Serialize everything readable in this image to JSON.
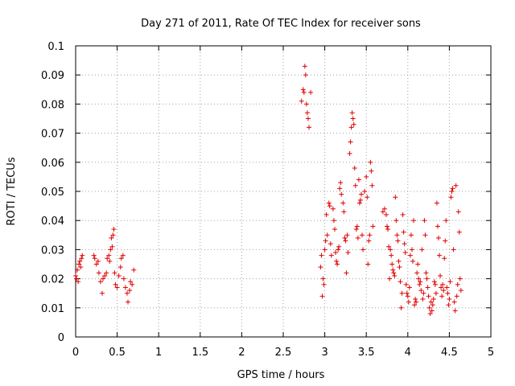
{
  "chart_data": {
    "type": "scatter",
    "title": "Day 271 of 2011, Rate Of TEC Index for receiver sons",
    "xlabel": "GPS time / hours",
    "ylabel": "ROTI / TECUs",
    "xlim": [
      0,
      5
    ],
    "ylim": [
      0,
      0.1
    ],
    "xticks": [
      "0",
      "0.5",
      "1",
      "1.5",
      "2",
      "2.5",
      "3",
      "3.5",
      "4",
      "4.5",
      "5"
    ],
    "yticks": [
      "0",
      "0.01",
      "0.02",
      "0.03",
      "0.04",
      "0.05",
      "0.06",
      "0.07",
      "0.08",
      "0.09",
      "0.1"
    ],
    "grid": true,
    "marker": "+",
    "marker_color": "#e00000",
    "series": [
      {
        "name": "sons",
        "points": [
          [
            0.0,
            0.021
          ],
          [
            0.01,
            0.02
          ],
          [
            0.02,
            0.023
          ],
          [
            0.03,
            0.019
          ],
          [
            0.04,
            0.025
          ],
          [
            0.05,
            0.026
          ],
          [
            0.06,
            0.024
          ],
          [
            0.07,
            0.027
          ],
          [
            0.08,
            0.028
          ],
          [
            0.22,
            0.028
          ],
          [
            0.23,
            0.027
          ],
          [
            0.25,
            0.025
          ],
          [
            0.27,
            0.026
          ],
          [
            0.28,
            0.022
          ],
          [
            0.3,
            0.019
          ],
          [
            0.32,
            0.015
          ],
          [
            0.33,
            0.02
          ],
          [
            0.35,
            0.021
          ],
          [
            0.37,
            0.022
          ],
          [
            0.38,
            0.027
          ],
          [
            0.4,
            0.028
          ],
          [
            0.41,
            0.026
          ],
          [
            0.42,
            0.03
          ],
          [
            0.43,
            0.034
          ],
          [
            0.44,
            0.031
          ],
          [
            0.45,
            0.035
          ],
          [
            0.46,
            0.037
          ],
          [
            0.47,
            0.022
          ],
          [
            0.48,
            0.018
          ],
          [
            0.5,
            0.017
          ],
          [
            0.52,
            0.021
          ],
          [
            0.54,
            0.024
          ],
          [
            0.55,
            0.027
          ],
          [
            0.57,
            0.028
          ],
          [
            0.58,
            0.02
          ],
          [
            0.6,
            0.017
          ],
          [
            0.62,
            0.015
          ],
          [
            0.63,
            0.012
          ],
          [
            0.65,
            0.016
          ],
          [
            0.66,
            0.019
          ],
          [
            0.68,
            0.018
          ],
          [
            0.7,
            0.023
          ],
          [
            2.72,
            0.081
          ],
          [
            2.74,
            0.085
          ],
          [
            2.75,
            0.084
          ],
          [
            2.76,
            0.093
          ],
          [
            2.77,
            0.09
          ],
          [
            2.78,
            0.08
          ],
          [
            2.79,
            0.077
          ],
          [
            2.8,
            0.075
          ],
          [
            2.81,
            0.072
          ],
          [
            2.83,
            0.084
          ],
          [
            2.95,
            0.024
          ],
          [
            2.96,
            0.028
          ],
          [
            2.97,
            0.014
          ],
          [
            2.98,
            0.02
          ],
          [
            2.99,
            0.018
          ],
          [
            3.0,
            0.03
          ],
          [
            3.01,
            0.033
          ],
          [
            3.02,
            0.042
          ],
          [
            3.03,
            0.035
          ],
          [
            3.05,
            0.046
          ],
          [
            3.06,
            0.045
          ],
          [
            3.07,
            0.032
          ],
          [
            3.08,
            0.028
          ],
          [
            3.1,
            0.044
          ],
          [
            3.11,
            0.04
          ],
          [
            3.12,
            0.037
          ],
          [
            3.13,
            0.029
          ],
          [
            3.14,
            0.026
          ],
          [
            3.15,
            0.025
          ],
          [
            3.16,
            0.03
          ],
          [
            3.17,
            0.031
          ],
          [
            3.18,
            0.051
          ],
          [
            3.19,
            0.053
          ],
          [
            3.2,
            0.049
          ],
          [
            3.22,
            0.046
          ],
          [
            3.23,
            0.043
          ],
          [
            3.24,
            0.034
          ],
          [
            3.25,
            0.033
          ],
          [
            3.26,
            0.022
          ],
          [
            3.27,
            0.035
          ],
          [
            3.28,
            0.029
          ],
          [
            3.3,
            0.063
          ],
          [
            3.31,
            0.067
          ],
          [
            3.32,
            0.072
          ],
          [
            3.33,
            0.077
          ],
          [
            3.34,
            0.075
          ],
          [
            3.35,
            0.073
          ],
          [
            3.36,
            0.058
          ],
          [
            3.37,
            0.052
          ],
          [
            3.38,
            0.037
          ],
          [
            3.39,
            0.038
          ],
          [
            3.4,
            0.034
          ],
          [
            3.41,
            0.054
          ],
          [
            3.42,
            0.046
          ],
          [
            3.43,
            0.047
          ],
          [
            3.44,
            0.049
          ],
          [
            3.45,
            0.035
          ],
          [
            3.46,
            0.03
          ],
          [
            3.48,
            0.05
          ],
          [
            3.5,
            0.055
          ],
          [
            3.51,
            0.048
          ],
          [
            3.52,
            0.025
          ],
          [
            3.53,
            0.033
          ],
          [
            3.54,
            0.035
          ],
          [
            3.55,
            0.06
          ],
          [
            3.56,
            0.057
          ],
          [
            3.57,
            0.052
          ],
          [
            3.58,
            0.038
          ],
          [
            3.7,
            0.043
          ],
          [
            3.72,
            0.044
          ],
          [
            3.74,
            0.042
          ],
          [
            3.75,
            0.038
          ],
          [
            3.76,
            0.037
          ],
          [
            3.77,
            0.031
          ],
          [
            3.78,
            0.02
          ],
          [
            3.79,
            0.03
          ],
          [
            3.8,
            0.028
          ],
          [
            3.81,
            0.025
          ],
          [
            3.82,
            0.023
          ],
          [
            3.83,
            0.022
          ],
          [
            3.84,
            0.021
          ],
          [
            3.85,
            0.048
          ],
          [
            3.86,
            0.04
          ],
          [
            3.87,
            0.035
          ],
          [
            3.88,
            0.033
          ],
          [
            3.89,
            0.026
          ],
          [
            3.9,
            0.024
          ],
          [
            3.91,
            0.019
          ],
          [
            3.92,
            0.01
          ],
          [
            3.93,
            0.015
          ],
          [
            3.94,
            0.042
          ],
          [
            3.95,
            0.036
          ],
          [
            3.96,
            0.032
          ],
          [
            3.97,
            0.029
          ],
          [
            3.98,
            0.018
          ],
          [
            3.99,
            0.015
          ],
          [
            4.0,
            0.014
          ],
          [
            4.01,
            0.012
          ],
          [
            4.02,
            0.017
          ],
          [
            4.03,
            0.028
          ],
          [
            4.04,
            0.035
          ],
          [
            4.05,
            0.03
          ],
          [
            4.06,
            0.026
          ],
          [
            4.07,
            0.04
          ],
          [
            4.08,
            0.011
          ],
          [
            4.09,
            0.013
          ],
          [
            4.1,
            0.012
          ],
          [
            4.11,
            0.022
          ],
          [
            4.12,
            0.025
          ],
          [
            4.13,
            0.02
          ],
          [
            4.14,
            0.018
          ],
          [
            4.15,
            0.019
          ],
          [
            4.16,
            0.016
          ],
          [
            4.17,
            0.03
          ],
          [
            4.18,
            0.013
          ],
          [
            4.19,
            0.015
          ],
          [
            4.2,
            0.04
          ],
          [
            4.21,
            0.035
          ],
          [
            4.22,
            0.022
          ],
          [
            4.23,
            0.02
          ],
          [
            4.24,
            0.017
          ],
          [
            4.25,
            0.014
          ],
          [
            4.26,
            0.01
          ],
          [
            4.27,
            0.008
          ],
          [
            4.28,
            0.012
          ],
          [
            4.29,
            0.009
          ],
          [
            4.3,
            0.011
          ],
          [
            4.31,
            0.013
          ],
          [
            4.32,
            0.019
          ],
          [
            4.33,
            0.018
          ],
          [
            4.34,
            0.015
          ],
          [
            4.35,
            0.046
          ],
          [
            4.36,
            0.038
          ],
          [
            4.37,
            0.034
          ],
          [
            4.38,
            0.028
          ],
          [
            4.39,
            0.021
          ],
          [
            4.4,
            0.017
          ],
          [
            4.41,
            0.014
          ],
          [
            4.42,
            0.018
          ],
          [
            4.43,
            0.016
          ],
          [
            4.44,
            0.027
          ],
          [
            4.45,
            0.033
          ],
          [
            4.46,
            0.04
          ],
          [
            4.47,
            0.017
          ],
          [
            4.48,
            0.015
          ],
          [
            4.49,
            0.011
          ],
          [
            4.5,
            0.013
          ],
          [
            4.51,
            0.019
          ],
          [
            4.52,
            0.048
          ],
          [
            4.53,
            0.05
          ],
          [
            4.54,
            0.051
          ],
          [
            4.55,
            0.03
          ],
          [
            4.56,
            0.012
          ],
          [
            4.57,
            0.009
          ],
          [
            4.58,
            0.052
          ],
          [
            4.59,
            0.014
          ],
          [
            4.6,
            0.018
          ],
          [
            4.61,
            0.043
          ],
          [
            4.62,
            0.036
          ],
          [
            4.63,
            0.02
          ],
          [
            4.64,
            0.016
          ]
        ]
      }
    ]
  }
}
